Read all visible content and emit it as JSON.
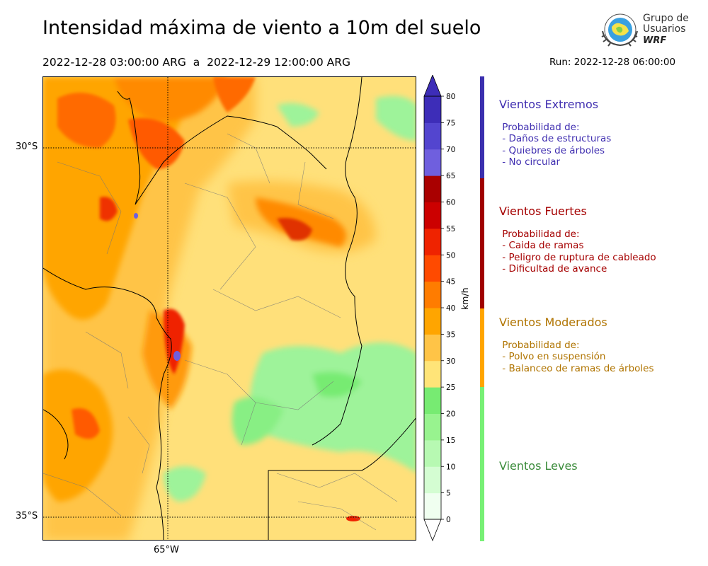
{
  "header": {
    "title": "Intensidad máxima de viento a 10m del suelo",
    "period": "2022-12-28 03:00:00 ARG  a  2022-12-29 12:00:00 ARG",
    "run": "Run: 2022-12-28 06:00:00"
  },
  "logo": {
    "line1": "Grupo de",
    "line2": "Usuarios",
    "line3": "WRF"
  },
  "map": {
    "lat_labels": [
      "30°S",
      "35°S"
    ],
    "lon_label": "65°W",
    "gridlines": "dotted"
  },
  "colorbar": {
    "unit": "km/h",
    "ticks": [
      "0",
      "5",
      "10",
      "15",
      "20",
      "25",
      "30",
      "35",
      "40",
      "45",
      "50",
      "55",
      "60",
      "65",
      "70",
      "75",
      "80"
    ],
    "colors": [
      "#f0fff0",
      "#d4fdd2",
      "#b7f9b2",
      "#98f38f",
      "#77eb72",
      "#ffe478",
      "#ffc447",
      "#ffa500",
      "#ff7c00",
      "#ff4a00",
      "#ef2300",
      "#cc0000",
      "#a90000",
      "#6f5fde",
      "#5345cf",
      "#3d2db8"
    ]
  },
  "categories": [
    {
      "title": "Vientos Extremos",
      "color": "#3f2eb0",
      "text": " Probabilidad de:\n - Daños de estructuras\n - Quiebres de árboles\n - No circular",
      "bar_color": "#3a2fae"
    },
    {
      "title": "Vientos Fuertes",
      "color": "#a50000",
      "text": " Probabilidad de:\n - Caida de ramas\n - Peligro de ruptura de cableado\n - Dificultad de avance",
      "bar_color": "#a00000"
    },
    {
      "title": "Vientos Moderados",
      "color": "#b07400",
      "text": " Probabilidad de:\n - Polvo en suspensión\n - Balanceo de ramas de árboles",
      "bar_color": "#ffa500"
    },
    {
      "title": "Vientos Leves",
      "color": "#3c8c3c",
      "text": "",
      "bar_color": "#77f075"
    }
  ]
}
